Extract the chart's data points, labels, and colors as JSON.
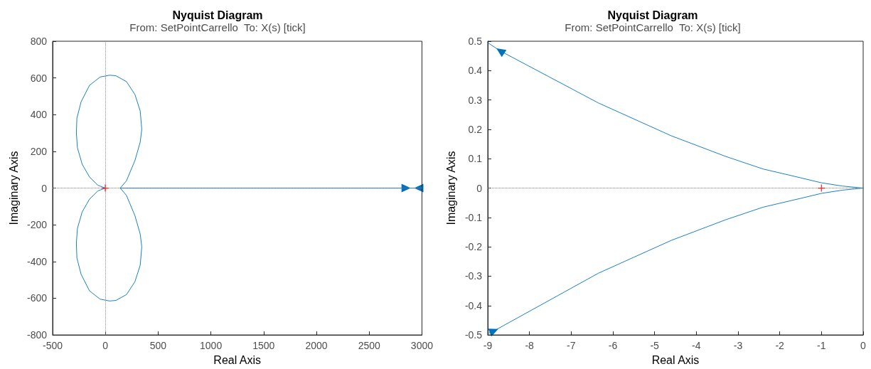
{
  "chart_data": [
    {
      "type": "line",
      "title": "Nyquist Diagram",
      "subtitle": "From: SetPointCarrello  To: X(s) [tick]",
      "xlabel": "Real Axis",
      "ylabel": "Imaginary Axis",
      "xlim": [
        -500,
        3000
      ],
      "ylim": [
        -800,
        800
      ],
      "xticks": [
        -500,
        0,
        500,
        1000,
        1500,
        2000,
        2500,
        3000
      ],
      "yticks": [
        -800,
        -600,
        -400,
        -200,
        0,
        200,
        400,
        600,
        800
      ],
      "grid": false,
      "line_style": "solid",
      "marker": "none",
      "ref_lines": [
        {
          "axis": "x",
          "value": 0,
          "color": "#808080",
          "line_style": "dotted"
        },
        {
          "axis": "y",
          "value": 0,
          "color": "#808080",
          "line_style": "dotted"
        }
      ],
      "series": [
        {
          "color": "#0072bd",
          "x": [
            3000,
            2850,
            2000,
            1000,
            500,
            141,
            200,
            280,
            330,
            345,
            330,
            280,
            200,
            100,
            40,
            -50,
            -150,
            -230,
            -270,
            -275,
            -265,
            -220,
            -150,
            -70,
            0
          ],
          "values": [
            0,
            0,
            0,
            0,
            0,
            0,
            40,
            150,
            250,
            320,
            420,
            510,
            580,
            612,
            615,
            605,
            560,
            470,
            380,
            300,
            220,
            130,
            60,
            15,
            0
          ]
        },
        {
          "color": "#0072bd",
          "x": [
            3000,
            2970,
            2000,
            1000,
            500,
            141,
            200,
            280,
            330,
            345,
            330,
            280,
            200,
            100,
            40,
            -50,
            -150,
            -230,
            -270,
            -275,
            -265,
            -220,
            -150,
            -70,
            0
          ],
          "values": [
            0,
            0,
            0,
            0,
            0,
            0,
            -40,
            -150,
            -250,
            -320,
            -420,
            -510,
            -580,
            -612,
            -615,
            -605,
            -560,
            -470,
            -380,
            -300,
            -220,
            -130,
            -60,
            -15,
            0
          ]
        },
        {
          "type": "scatter",
          "marker": "cross",
          "color": "#ff0000",
          "x": [
            -1
          ],
          "values": [
            0
          ]
        }
      ]
    },
    {
      "type": "line",
      "title": "Nyquist Diagram",
      "subtitle": "From: SetPointCarrello  To: X(s) [tick]",
      "xlabel": "Real Axis",
      "ylabel": "Imaginary Axis",
      "xlim": [
        -9,
        0
      ],
      "ylim": [
        -0.5,
        0.5
      ],
      "xticks": [
        -9,
        -8,
        -7,
        -6,
        -5,
        -4,
        -3,
        -2,
        -1,
        0
      ],
      "yticks": [
        -0.5,
        -0.4,
        -0.3,
        -0.2,
        -0.1,
        0,
        0.1,
        0.2,
        0.3,
        0.4,
        0.5
      ],
      "grid": false,
      "line_style": "solid",
      "marker": "none",
      "ref_lines": [
        {
          "axis": "y",
          "value": 0,
          "color": "#808080",
          "line_style": "dotted"
        }
      ],
      "series": [
        {
          "color": "#0072bd",
          "x": [
            -9,
            -8.7,
            -6.35,
            -4.6,
            -3.3,
            -2.4,
            -1.5,
            -1,
            -0.5,
            0
          ],
          "values": [
            0.495,
            0.467,
            0.29,
            0.178,
            0.108,
            0.065,
            0.035,
            0.018,
            0.007,
            0
          ]
        },
        {
          "color": "#0072bd",
          "x": [
            -9,
            -8.85,
            -6.35,
            -4.6,
            -3.3,
            -2.4,
            -1.5,
            -1,
            -0.5,
            0
          ],
          "values": [
            -0.495,
            -0.486,
            -0.29,
            -0.178,
            -0.108,
            -0.065,
            -0.035,
            -0.018,
            -0.007,
            0
          ]
        },
        {
          "type": "scatter",
          "marker": "cross",
          "color": "#ff0000",
          "x": [
            -1
          ],
          "values": [
            0
          ]
        }
      ]
    }
  ]
}
